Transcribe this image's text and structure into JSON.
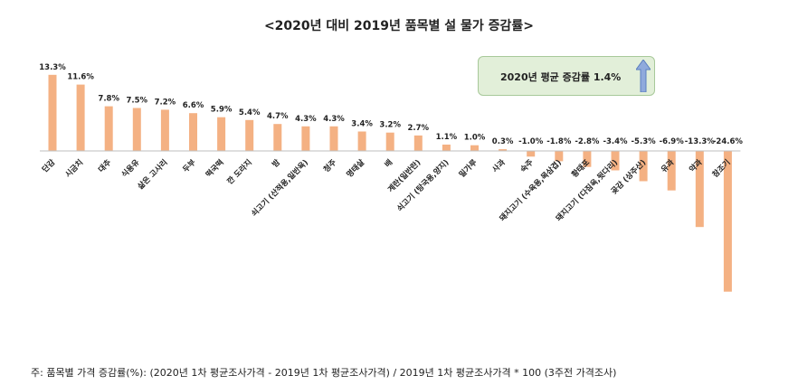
{
  "chart_data": {
    "type": "bar",
    "title": "<2020년 대비  2019년 품목별 설 물가 증감률>",
    "categories": [
      "단감",
      "시금치",
      "대추",
      "식용유",
      "삶은 고사리",
      "두부",
      "떡국떡",
      "깐 도라지",
      "밤",
      "쇠고기 (산적용,일반육)",
      "청주",
      "명태살",
      "배",
      "계란(일반란)",
      "쇠고기 (탕국용,양지)",
      "밀가루",
      "사과",
      "숙주",
      "돼지고기 (수육용,목삼겹)",
      "황태포",
      "돼지고기 (다짐육,뒷다리)",
      "곶감 (상주산)",
      "유과",
      "약과",
      "참조기"
    ],
    "values": [
      13.3,
      11.6,
      7.8,
      7.5,
      7.2,
      6.6,
      5.9,
      5.4,
      4.7,
      4.3,
      4.3,
      3.4,
      3.2,
      2.7,
      1.1,
      1.0,
      0.3,
      -1.0,
      -1.8,
      -2.8,
      -3.4,
      -5.3,
      -6.9,
      -13.3,
      -24.6
    ],
    "value_labels": [
      "13.3%",
      "11.6%",
      "7.8%",
      "7.5%",
      "7.2%",
      "6.6%",
      "5.9%",
      "5.4%",
      "4.7%",
      "4.3%",
      "4.3%",
      "3.4%",
      "3.2%",
      "2.7%",
      "1.1%",
      "1.0%",
      "0.3%",
      "-1.0%",
      "-1.8%",
      "-2.8%",
      "-3.4%",
      "-5.3%",
      "-6.9%",
      "-13.3%",
      "-24.6%"
    ],
    "ylim": [
      -24.6,
      13.3
    ],
    "grid": false,
    "colors": {
      "bar": "#f4b183",
      "baseline": "#bfbfbf",
      "arrow": "#8faadc"
    }
  },
  "annotation": {
    "text": "2020년 평균 증감률 1.4%"
  },
  "footnote": "주: 품목별 가격 증감률(%): (2020년 1차 평균조사가격 - 2019년 1차 평균조사가격) / 2019년 1차 평균조사가격 * 100 (3주전 가격조사)"
}
